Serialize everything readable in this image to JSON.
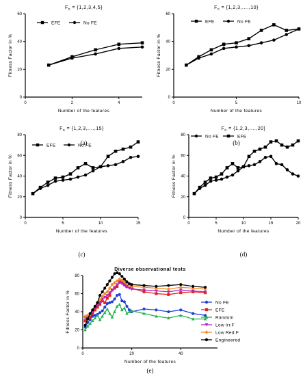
{
  "chart_data": [
    {
      "panel_label": "(a)",
      "type": "line",
      "title": "F",
      "title_sub": "n",
      "title_rest": " = {1,2,3,4,5}",
      "xlabel": "Number of the features",
      "ylabel": "Fitness Factor in %",
      "xlim": [
        0,
        5
      ],
      "ylim": [
        0,
        60
      ],
      "xticks": [
        0,
        2,
        4
      ],
      "yticks": [
        0,
        20,
        40,
        60
      ],
      "legend_position": "top-left",
      "legend_order": [
        0,
        1
      ],
      "series": [
        {
          "name": "EFE",
          "color": "#000000",
          "marker": "square",
          "x": [
            1,
            2,
            3,
            4,
            5
          ],
          "y": [
            23,
            29,
            34,
            38,
            39
          ]
        },
        {
          "name": "No FE",
          "color": "#000000",
          "marker": "circle",
          "x": [
            1,
            2,
            3,
            4,
            5
          ],
          "y": [
            23,
            28,
            31,
            35,
            36
          ]
        }
      ]
    },
    {
      "panel_label": "(b)",
      "type": "line",
      "title": "F",
      "title_sub": "n",
      "title_rest": " = {1,2,3,....,10}",
      "xlabel": "Number of the features",
      "ylabel": "Fitness Factor in %",
      "xlim": [
        0,
        10
      ],
      "ylim": [
        0,
        60
      ],
      "xticks": [
        0,
        5,
        10
      ],
      "yticks": [
        0,
        20,
        40,
        60
      ],
      "legend_position": "top-left",
      "legend_order": [
        0,
        1
      ],
      "series": [
        {
          "name": "EFE",
          "color": "#000000",
          "marker": "square",
          "x": [
            1,
            2,
            3,
            4,
            5,
            6,
            7,
            8,
            9,
            10
          ],
          "y": [
            23,
            29,
            34,
            38,
            39,
            42,
            48,
            52,
            48,
            49
          ]
        },
        {
          "name": "No FE",
          "color": "#000000",
          "marker": "circle",
          "x": [
            1,
            2,
            3,
            4,
            5,
            6,
            7,
            8,
            9,
            10
          ],
          "y": [
            23,
            28,
            31,
            35,
            36,
            37,
            39,
            41,
            45,
            49
          ]
        }
      ]
    },
    {
      "panel_label": "(c)",
      "type": "line",
      "title": "F",
      "title_sub": "n",
      "title_rest": " = {1,2,3,....,15}",
      "xlabel": "Number of the features",
      "ylabel": "Fitness Factor in %",
      "xlim": [
        0,
        15
      ],
      "ylim": [
        0,
        80
      ],
      "xticks": [
        0,
        5,
        10,
        15
      ],
      "yticks": [
        0,
        20,
        40,
        60,
        80
      ],
      "legend_position": "top-left",
      "legend_order": [
        0,
        1
      ],
      "series": [
        {
          "name": "EFE",
          "color": "#000000",
          "marker": "square",
          "x": [
            1,
            2,
            3,
            4,
            5,
            6,
            7,
            8,
            9,
            10,
            11,
            12,
            13,
            14,
            15
          ],
          "y": [
            23,
            29,
            34,
            38,
            39,
            42,
            48,
            52,
            48,
            49,
            59,
            64,
            66,
            68,
            73
          ]
        },
        {
          "name": "No FE",
          "color": "#000000",
          "marker": "circle",
          "x": [
            1,
            2,
            3,
            4,
            5,
            6,
            7,
            8,
            9,
            10,
            11,
            12,
            13,
            14,
            15
          ],
          "y": [
            23,
            28,
            31,
            35,
            36,
            37,
            39,
            41,
            45,
            49,
            50,
            51,
            54,
            58,
            59
          ]
        }
      ]
    },
    {
      "panel_label": "(d)",
      "type": "line",
      "title": "F",
      "title_sub": "n",
      "title_rest": " = {1,2,3,....,20}",
      "xlabel": "Number of the features",
      "ylabel": "Fitness Factor in %",
      "xlim": [
        0,
        20
      ],
      "ylim": [
        0,
        80
      ],
      "xticks": [
        0,
        5,
        10,
        15,
        20
      ],
      "yticks": [
        0,
        20,
        40,
        60,
        80
      ],
      "legend_position": "top-left",
      "legend_order": [
        1,
        0
      ],
      "series": [
        {
          "name": "EFE",
          "color": "#000000",
          "marker": "square",
          "x": [
            1,
            2,
            3,
            4,
            5,
            6,
            7,
            8,
            9,
            10,
            11,
            12,
            13,
            14,
            15,
            16,
            17,
            18,
            19,
            20
          ],
          "y": [
            23,
            29,
            34,
            38,
            39,
            42,
            48,
            52,
            48,
            49,
            59,
            64,
            66,
            68,
            73,
            74,
            70,
            68,
            70,
            74
          ]
        },
        {
          "name": "No FE",
          "color": "#000000",
          "marker": "circle",
          "x": [
            1,
            2,
            3,
            4,
            5,
            6,
            7,
            8,
            9,
            10,
            11,
            12,
            13,
            14,
            15,
            16,
            17,
            18,
            19,
            20
          ],
          "y": [
            23,
            28,
            31,
            35,
            36,
            37,
            39,
            41,
            45,
            49,
            50,
            51,
            54,
            58,
            59,
            52,
            51,
            46,
            42,
            40
          ]
        }
      ]
    },
    {
      "panel_label": "(e)",
      "type": "line",
      "title": "Diverse observational tests",
      "xlabel": "Number of the features",
      "ylabel": "Fitness Factor in %",
      "xlim": [
        0,
        55
      ],
      "ylim": [
        0,
        80
      ],
      "xticks": [
        0,
        20,
        40
      ],
      "yticks": [
        0,
        20,
        40,
        60,
        80
      ],
      "legend_position": "right",
      "legend_order": [
        0,
        1,
        2,
        3,
        4,
        5
      ],
      "series": [
        {
          "name": "No FE",
          "color": "#1f3fd6",
          "marker": "circle",
          "x": [
            1,
            2,
            3,
            4,
            5,
            6,
            7,
            8,
            9,
            10,
            11,
            12,
            13,
            14,
            15,
            16,
            17,
            18,
            19,
            20,
            25,
            30,
            35,
            40,
            45,
            50
          ],
          "y": [
            23,
            28,
            31,
            35,
            36,
            37,
            39,
            41,
            45,
            49,
            50,
            51,
            54,
            58,
            59,
            52,
            51,
            46,
            42,
            40,
            43,
            42,
            40,
            42,
            38,
            36
          ]
        },
        {
          "name": "EFE",
          "color": "#e3241b",
          "marker": "square",
          "x": [
            1,
            2,
            3,
            4,
            5,
            6,
            7,
            8,
            9,
            10,
            11,
            12,
            13,
            14,
            15,
            16,
            17,
            18,
            19,
            20,
            25,
            30,
            35,
            40,
            45,
            50
          ],
          "y": [
            30,
            33,
            34,
            38,
            42,
            45,
            48,
            52,
            50,
            55,
            58,
            64,
            66,
            68,
            73,
            74,
            70,
            68,
            70,
            66,
            62,
            60,
            59,
            61,
            62,
            61
          ]
        },
        {
          "name": "Random",
          "color": "#22b14c",
          "marker": "triangle",
          "x": [
            1,
            2,
            3,
            4,
            5,
            6,
            7,
            8,
            9,
            10,
            11,
            12,
            13,
            14,
            15,
            16,
            17,
            18,
            19,
            20,
            25,
            30,
            35,
            40,
            45,
            50
          ],
          "y": [
            20,
            24,
            27,
            30,
            33,
            36,
            31,
            35,
            39,
            43,
            38,
            34,
            40,
            46,
            48,
            42,
            44,
            38,
            40,
            41,
            38,
            35,
            33,
            36,
            32,
            32
          ]
        },
        {
          "name": "Low Irr.F",
          "color": "#b521c9",
          "marker": "triangle-down",
          "x": [
            1,
            2,
            3,
            4,
            5,
            6,
            7,
            8,
            9,
            10,
            11,
            12,
            13,
            14,
            15,
            16,
            17,
            18,
            19,
            20,
            25,
            30,
            35,
            40,
            45,
            50
          ],
          "y": [
            33,
            35,
            37,
            40,
            44,
            47,
            50,
            54,
            56,
            58,
            61,
            64,
            67,
            70,
            72,
            71,
            69,
            67,
            66,
            65,
            64,
            63,
            62,
            64,
            63,
            62
          ]
        },
        {
          "name": "Low Red.F",
          "color": "#f28c1e",
          "marker": "diamond",
          "x": [
            1,
            2,
            3,
            4,
            5,
            6,
            7,
            8,
            9,
            10,
            11,
            12,
            13,
            14,
            15,
            16,
            17,
            18,
            19,
            20,
            25,
            30,
            35,
            40,
            45,
            50
          ],
          "y": [
            35,
            36,
            38,
            42,
            46,
            50,
            53,
            57,
            60,
            62,
            66,
            70,
            72,
            74,
            76,
            75,
            73,
            71,
            70,
            68,
            67,
            66,
            65,
            67,
            66,
            65
          ]
        },
        {
          "name": "Engineered",
          "color": "#000000",
          "marker": "circle",
          "x": [
            1,
            2,
            3,
            4,
            5,
            6,
            7,
            8,
            9,
            10,
            11,
            12,
            13,
            14,
            15,
            16,
            17,
            18,
            19,
            20,
            25,
            30,
            35,
            40,
            45,
            50
          ],
          "y": [
            25,
            32,
            38,
            42,
            46,
            50,
            58,
            62,
            66,
            70,
            74,
            78,
            82,
            83,
            82,
            79,
            76,
            73,
            71,
            70,
            69,
            68,
            69,
            70,
            68,
            67
          ]
        }
      ]
    }
  ]
}
